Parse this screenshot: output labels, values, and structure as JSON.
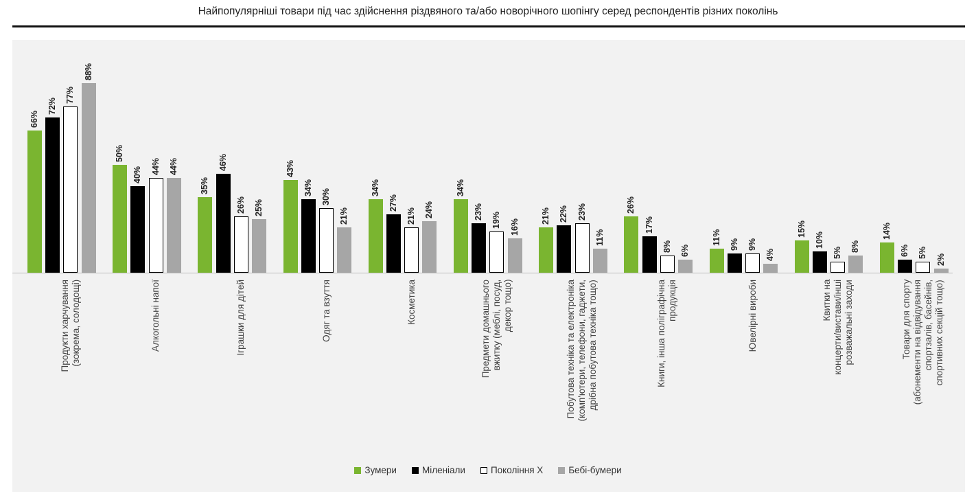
{
  "chart_data": {
    "type": "bar",
    "title": "Найпопулярніші товари під час здійснення різдвяного та/або новорічного шопінгу серед респондентів різних поколінь",
    "xlabel": "",
    "ylabel": "",
    "ylim": [
      0,
      100
    ],
    "grid": false,
    "legend_position": "bottom",
    "value_suffix": "%",
    "categories": [
      "Продукти харчування\n(зокрема, солодощі)",
      "Алкогольні напої",
      "Іграшки для дітей",
      "Одяг та взуття",
      "Косметика",
      "Предмети домашнього\nвжитку (меблі, посуд,\nдекор тощо)",
      "Побутова техніка та електроніка\n(комп'ютери, телефони, гаджети,\nдрібна побутова техніка тощо)",
      "Книги, інша поліграфічна\nпродукція",
      "Ювелірні вироби",
      "Квитки на\nконцерти/вистави/інші\nрозважальні заходи",
      "Товари для спорту\n(абонементи на відвідування\nспортзалів, басейнів,\nспортивних секцій тощо)"
    ],
    "series": [
      {
        "name": "Зумери",
        "color": "#7ab530",
        "values": [
          66,
          50,
          35,
          43,
          34,
          34,
          21,
          26,
          11,
          15,
          14
        ]
      },
      {
        "name": "Міленіали",
        "color": "#000000",
        "values": [
          72,
          40,
          46,
          34,
          27,
          23,
          22,
          17,
          9,
          10,
          6
        ]
      },
      {
        "name": "Покоління Х",
        "color": "#ffffff",
        "values": [
          77,
          44,
          26,
          30,
          21,
          19,
          23,
          8,
          9,
          5,
          5
        ]
      },
      {
        "name": "Бебі-бумери",
        "color": "#a6a6a6",
        "values": [
          88,
          44,
          25,
          21,
          24,
          16,
          11,
          6,
          4,
          8,
          2
        ]
      }
    ]
  }
}
